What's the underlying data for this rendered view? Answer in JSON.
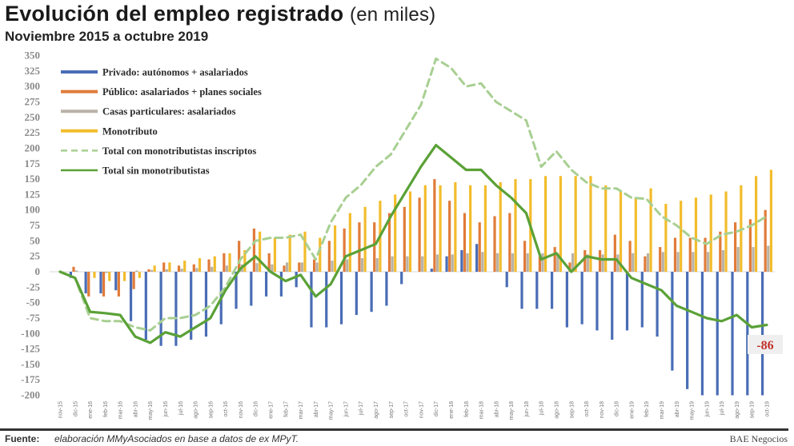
{
  "header": {
    "title": "Evolución del empleo registrado",
    "title_unit": "(en miles)",
    "subtitle": "Noviembre 2015 a octubre 2019"
  },
  "footer": {
    "source_label": "Fuente:",
    "source_text": "elaboración MMyAsociados en base a datos de ex MPyT.",
    "brand": "BAE Negocios"
  },
  "colors": {
    "privado": "#4a6db5",
    "publico": "#e07b39",
    "casas": "#b9b2a6",
    "monotributo": "#f2bc2c",
    "total_con": "#a8cf92",
    "total_sin": "#5aa137",
    "callout": "#c0302a"
  },
  "callout": {
    "label": "-86"
  },
  "chart_data": {
    "type": "bar+line",
    "title": "Evolución del empleo registrado (en miles)",
    "subtitle": "Noviembre 2015 a octubre 2019",
    "xlabel": "",
    "ylabel": "",
    "ylim": [
      -200,
      350
    ],
    "yticks": [
      350,
      325,
      300,
      275,
      250,
      225,
      200,
      175,
      150,
      125,
      100,
      75,
      50,
      25,
      0,
      -25,
      -50,
      -75,
      -100,
      -125,
      -150,
      -175,
      -200
    ],
    "grid": false,
    "legend_position": "upper-left inside",
    "categories": [
      "nov-15",
      "dic-15",
      "ene-16",
      "feb-16",
      "mar-16",
      "abr-16",
      "may-16",
      "jun-16",
      "jul-16",
      "ago-16",
      "sep-16",
      "oct-16",
      "nov-16",
      "dic-16",
      "ene-17",
      "feb-17",
      "mar-17",
      "abr-17",
      "may-17",
      "jun-17",
      "jul-17",
      "ago-17",
      "sep-17",
      "oct-17",
      "nov-17",
      "dic-17",
      "ene-18",
      "feb-18",
      "mar-18",
      "abr-18",
      "may-18",
      "jun-18",
      "jul-18",
      "ago-18",
      "sep-18",
      "oct-18",
      "nov-18",
      "dic-18",
      "ene-19",
      "feb-19",
      "mar-19",
      "abr-19",
      "may-19",
      "jun-19",
      "jul-19",
      "ago-19",
      "sep-19",
      "oct-19"
    ],
    "series": [
      {
        "name": "Privado: autónomos + asalariados",
        "kind": "bar",
        "values": [
          0,
          -10,
          -35,
          -35,
          -30,
          -80,
          -110,
          -120,
          -120,
          -110,
          -105,
          -85,
          -60,
          -55,
          -40,
          -40,
          -25,
          -90,
          -90,
          -85,
          -70,
          -65,
          -55,
          -20,
          0,
          5,
          25,
          35,
          45,
          0,
          -25,
          -60,
          -60,
          -60,
          -90,
          -85,
          -95,
          -110,
          -95,
          -90,
          -105,
          -160,
          -190,
          -200,
          -200,
          -200,
          -200,
          -200
        ]
      },
      {
        "name": "Público: asalariados + planes sociales",
        "kind": "bar",
        "values": [
          0,
          8,
          -40,
          -40,
          -40,
          -28,
          4,
          15,
          10,
          12,
          20,
          30,
          50,
          70,
          30,
          10,
          15,
          20,
          50,
          70,
          80,
          80,
          95,
          105,
          120,
          150,
          115,
          95,
          80,
          90,
          95,
          50,
          25,
          40,
          15,
          35,
          35,
          60,
          50,
          25,
          40,
          55,
          55,
          55,
          65,
          80,
          85,
          100
        ]
      },
      {
        "name": "Casas particulares: asalariados",
        "kind": "bar",
        "values": [
          0,
          2,
          0,
          -2,
          0,
          2,
          3,
          4,
          5,
          6,
          8,
          10,
          12,
          14,
          12,
          15,
          15,
          15,
          18,
          20,
          22,
          22,
          25,
          25,
          25,
          28,
          28,
          30,
          32,
          30,
          30,
          30,
          30,
          30,
          30,
          28,
          28,
          28,
          30,
          30,
          32,
          32,
          32,
          32,
          35,
          40,
          40,
          42
        ]
      },
      {
        "name": "Monotributo",
        "kind": "bar",
        "values": [
          0,
          0,
          -10,
          -15,
          -15,
          -10,
          10,
          15,
          18,
          22,
          25,
          30,
          35,
          65,
          55,
          60,
          65,
          55,
          75,
          95,
          105,
          115,
          125,
          130,
          140,
          140,
          145,
          140,
          140,
          145,
          150,
          150,
          155,
          155,
          155,
          155,
          140,
          130,
          120,
          135,
          110,
          115,
          120,
          125,
          130,
          140,
          155,
          165
        ]
      },
      {
        "name": "Total con monotributistas inscriptos",
        "kind": "line",
        "dash": true,
        "values": [
          0,
          -10,
          -75,
          -80,
          -80,
          -90,
          -95,
          -75,
          -75,
          -70,
          -55,
          -25,
          20,
          50,
          55,
          55,
          60,
          20,
          80,
          120,
          140,
          170,
          190,
          230,
          270,
          345,
          330,
          300,
          305,
          275,
          260,
          245,
          170,
          195,
          165,
          145,
          135,
          135,
          120,
          118,
          90,
          75,
          55,
          45,
          60,
          65,
          75,
          90
        ]
      },
      {
        "name": "Total sin monotributistas",
        "kind": "line",
        "dash": false,
        "values": [
          0,
          -10,
          -65,
          -67,
          -70,
          -105,
          -115,
          -98,
          -105,
          -90,
          -75,
          -30,
          5,
          25,
          0,
          -15,
          -5,
          -40,
          -20,
          25,
          35,
          45,
          90,
          130,
          170,
          205,
          185,
          165,
          165,
          140,
          120,
          95,
          20,
          30,
          0,
          25,
          20,
          20,
          -10,
          -20,
          -30,
          -55,
          -65,
          -75,
          -80,
          -70,
          -90,
          -86
        ]
      }
    ],
    "annotations": [
      {
        "category": "oct-19",
        "series": "Total sin monotributistas",
        "text": "-86"
      }
    ]
  }
}
